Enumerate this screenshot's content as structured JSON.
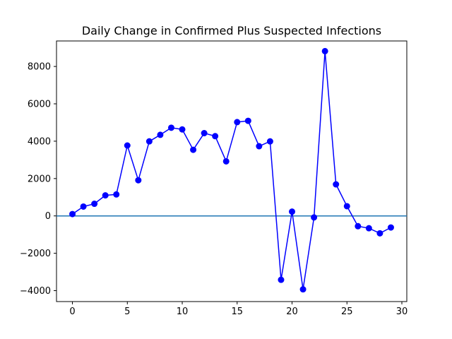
{
  "chart_data": {
    "type": "line",
    "title": "Daily Change in Confirmed Plus Suspected Infections",
    "xlabel": "",
    "ylabel": "",
    "xlim": [
      -1.45,
      30.45
    ],
    "ylim": [
      -4585,
      9365
    ],
    "xticks": [
      0,
      5,
      10,
      15,
      20,
      25,
      30
    ],
    "yticks": [
      -4000,
      -2000,
      0,
      2000,
      4000,
      6000,
      8000
    ],
    "grid": false,
    "reference_line": {
      "y": 0,
      "color": "#1f77b4"
    },
    "series": [
      {
        "color": "#0000ff",
        "marker": "circle",
        "x": [
          0,
          1,
          2,
          3,
          4,
          5,
          6,
          7,
          8,
          9,
          10,
          11,
          12,
          13,
          14,
          15,
          16,
          17,
          18,
          19,
          20,
          21,
          22,
          23,
          24,
          25,
          26,
          27,
          28,
          29
        ],
        "y": [
          100,
          500,
          650,
          1100,
          1150,
          3770,
          1910,
          3990,
          4340,
          4720,
          4630,
          3540,
          4430,
          4270,
          2920,
          5020,
          5090,
          3730,
          3990,
          -3420,
          230,
          -3930,
          -80,
          8820,
          1690,
          520,
          -550,
          -660,
          -930,
          -620
        ]
      }
    ]
  }
}
